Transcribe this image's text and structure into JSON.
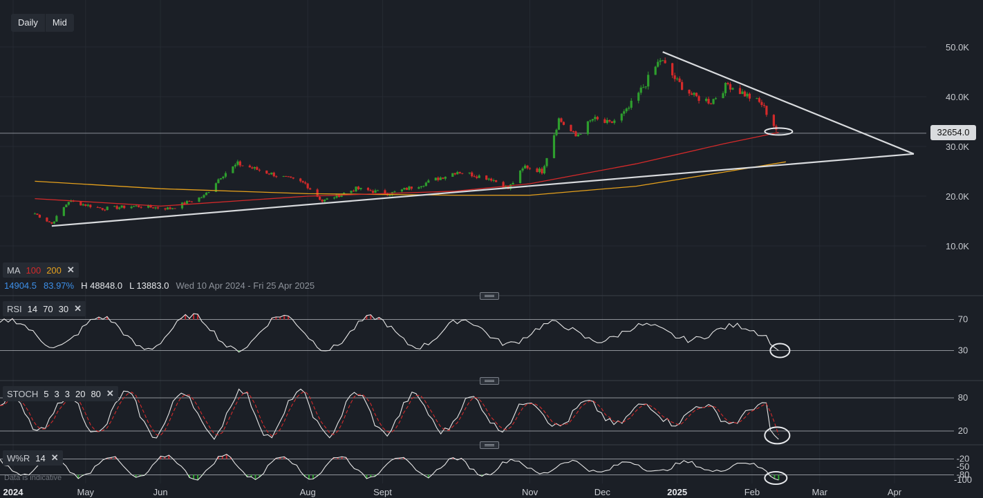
{
  "toolbar": {
    "interval": "Daily",
    "price_type": "Mid"
  },
  "ma_legend": {
    "name": "MA",
    "p1": "100",
    "p2": "200"
  },
  "stats": {
    "value1": "14904.5",
    "value2": "83.97%",
    "high": "H 48848.0",
    "low": "L 13883.0",
    "range": "Wed 10 Apr 2024 - Fri 25 Apr 2025"
  },
  "rsi_legend": {
    "name": "RSI",
    "p1": "14",
    "p2": "70",
    "p3": "30"
  },
  "stoch_legend": {
    "name": "STOCH",
    "p1": "5",
    "p2": "3",
    "p3": "3",
    "p4": "20",
    "p5": "80"
  },
  "wpr_legend": {
    "name": "W%R",
    "p1": "14"
  },
  "disclaimer": "Data is indicative",
  "colors": {
    "bg": "#1b1f26",
    "up": "#2e9e2e",
    "down": "#d42a2a",
    "ma100": "#d42a2a",
    "ma200": "#e6a11c",
    "trend": "#d9dbde",
    "osc": "#e8e8e8"
  },
  "chart_data": {
    "type": "candlestick",
    "interval": "Daily",
    "x_labels": [
      "2024",
      "May",
      "Jun",
      "Aug",
      "Sept",
      "Nov",
      "Dec",
      "2025",
      "Feb",
      "Mar",
      "Apr"
    ],
    "y_labels": [
      "50.0K",
      "40.0K",
      "30.0K",
      "20.0K",
      "10.0K"
    ],
    "ylim": [
      7000,
      52000
    ],
    "current_price": "32654.0",
    "high": 48848.0,
    "low": 13883.0,
    "close_series": [
      {
        "date": "2024-04-10",
        "close": 16500
      },
      {
        "date": "2024-04-17",
        "close": 14500
      },
      {
        "date": "2024-04-24",
        "close": 19000
      },
      {
        "date": "2024-05-08",
        "close": 17500
      },
      {
        "date": "2024-05-22",
        "close": 18000
      },
      {
        "date": "2024-06-05",
        "close": 17500
      },
      {
        "date": "2024-06-19",
        "close": 20000
      },
      {
        "date": "2024-06-26",
        "close": 24000
      },
      {
        "date": "2024-07-03",
        "close": 26500
      },
      {
        "date": "2024-07-17",
        "close": 24500
      },
      {
        "date": "2024-07-31",
        "close": 22500
      },
      {
        "date": "2024-08-07",
        "close": 19000
      },
      {
        "date": "2024-08-21",
        "close": 21500
      },
      {
        "date": "2024-09-04",
        "close": 20500
      },
      {
        "date": "2024-09-18",
        "close": 22500
      },
      {
        "date": "2024-10-02",
        "close": 25000
      },
      {
        "date": "2024-10-16",
        "close": 23500
      },
      {
        "date": "2024-10-23",
        "close": 21500
      },
      {
        "date": "2024-10-30",
        "close": 26000
      },
      {
        "date": "2024-11-06",
        "close": 25000
      },
      {
        "date": "2024-11-13",
        "close": 35500
      },
      {
        "date": "2024-11-20",
        "close": 32000
      },
      {
        "date": "2024-11-27",
        "close": 35500
      },
      {
        "date": "2024-12-04",
        "close": 34500
      },
      {
        "date": "2024-12-11",
        "close": 37000
      },
      {
        "date": "2024-12-18",
        "close": 42000
      },
      {
        "date": "2024-12-25",
        "close": 47500
      },
      {
        "date": "2025-01-01",
        "close": 43000
      },
      {
        "date": "2025-01-08",
        "close": 40000
      },
      {
        "date": "2025-01-15",
        "close": 39000
      },
      {
        "date": "2025-01-22",
        "close": 42500
      },
      {
        "date": "2025-01-29",
        "close": 40500
      },
      {
        "date": "2025-02-05",
        "close": 38500
      },
      {
        "date": "2025-02-12",
        "close": 32654
      }
    ],
    "ma100": [
      {
        "date": "2024-04-10",
        "value": 19500
      },
      {
        "date": "2024-06-01",
        "value": 18000
      },
      {
        "date": "2024-08-01",
        "value": 20000
      },
      {
        "date": "2024-10-01",
        "value": 21000
      },
      {
        "date": "2024-11-01",
        "value": 22500
      },
      {
        "date": "2024-12-15",
        "value": 26500
      },
      {
        "date": "2025-01-20",
        "value": 30500
      },
      {
        "date": "2025-02-12",
        "value": 32800
      }
    ],
    "ma200": [
      {
        "date": "2024-04-10",
        "value": 23000
      },
      {
        "date": "2024-06-01",
        "value": 21500
      },
      {
        "date": "2024-08-01",
        "value": 20500
      },
      {
        "date": "2024-10-01",
        "value": 20200
      },
      {
        "date": "2024-11-01",
        "value": 20200
      },
      {
        "date": "2024-12-15",
        "value": 22000
      },
      {
        "date": "2025-01-20",
        "value": 24800
      },
      {
        "date": "2025-02-15",
        "value": 26900
      }
    ],
    "trendlines": [
      {
        "from": {
          "date": "2024-04-17",
          "value": 14000
        },
        "to": {
          "date": "2025-04-09",
          "value": 28500
        }
      },
      {
        "from": {
          "date": "2024-12-26",
          "value": 49000
        },
        "to": {
          "date": "2025-04-09",
          "value": 28500
        }
      }
    ],
    "indicators": {
      "rsi": {
        "levels": [
          70,
          30
        ],
        "axis_labels": [
          "70",
          "30"
        ]
      },
      "stoch": {
        "levels": [
          80,
          20
        ],
        "axis_labels": [
          "80",
          "20"
        ]
      },
      "williams_r": {
        "levels": [
          -20,
          -80
        ],
        "axis_labels": [
          "-20",
          "-50",
          "-80",
          "-100"
        ]
      }
    }
  }
}
